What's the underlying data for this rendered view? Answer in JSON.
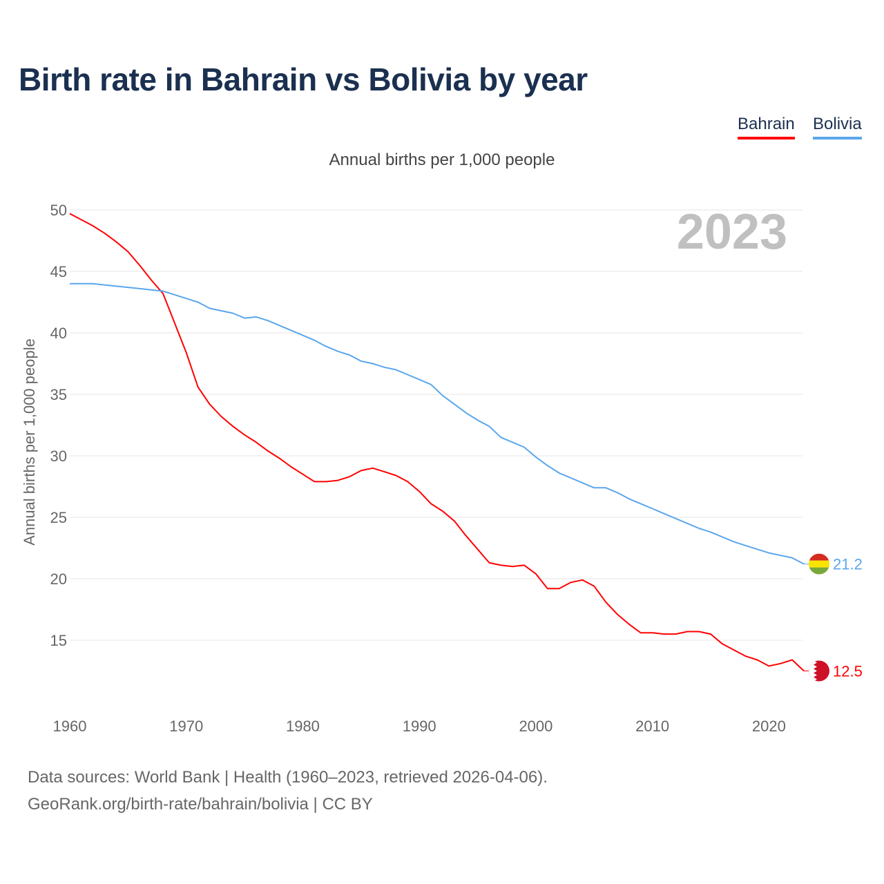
{
  "title": "Birth rate in Bahrain vs Bolivia by year",
  "legend": {
    "bahrain": "Bahrain",
    "bolivia": "Bolivia"
  },
  "subtitle": "Annual births per 1,000 people",
  "footer": {
    "line1": "Data sources: World Bank | Health (1960–2023, retrieved 2026-04-06).",
    "line2": "GeoRank.org/birth-rate/bahrain/bolivia | CC BY"
  },
  "chart_data": {
    "type": "line",
    "title": "Birth rate in Bahrain vs Bolivia by year",
    "ylabel": "Annual births per 1,000 people",
    "xlabel": "",
    "year_label": "2023",
    "xlim": [
      1960,
      2023
    ],
    "ylim": [
      10,
      50
    ],
    "yticks": [
      15,
      20,
      25,
      30,
      35,
      40,
      45,
      50
    ],
    "xticks": [
      1960,
      1970,
      1980,
      1990,
      2000,
      2010,
      2020
    ],
    "grid": true,
    "legend_position": "top-right",
    "x_start": 1960,
    "series": [
      {
        "name": "Bahrain",
        "color": "#ff0000",
        "end_label": "12.5",
        "values": [
          49.7,
          49.2,
          48.7,
          48.1,
          47.4,
          46.6,
          45.5,
          44.3,
          43.2,
          40.8,
          38.4,
          35.6,
          34.2,
          33.2,
          32.4,
          31.7,
          31.1,
          30.4,
          29.8,
          29.1,
          28.5,
          27.9,
          27.9,
          28.0,
          28.3,
          28.8,
          29.0,
          28.7,
          28.4,
          27.9,
          27.1,
          26.1,
          25.5,
          24.7,
          23.5,
          22.4,
          21.3,
          21.1,
          21.0,
          21.1,
          20.4,
          19.2,
          19.2,
          19.7,
          19.9,
          19.4,
          18.1,
          17.1,
          16.3,
          15.6,
          15.6,
          15.5,
          15.5,
          15.7,
          15.7,
          15.5,
          14.7,
          14.2,
          13.7,
          13.4,
          12.9,
          13.1,
          13.4,
          12.5
        ]
      },
      {
        "name": "Bolivia",
        "color": "#5aa6ec",
        "end_label": "21.2",
        "values": [
          44.0,
          44.0,
          44.0,
          43.9,
          43.8,
          43.7,
          43.6,
          43.5,
          43.4,
          43.1,
          42.8,
          42.5,
          42.0,
          41.8,
          41.6,
          41.2,
          41.3,
          41.0,
          40.6,
          40.2,
          39.8,
          39.4,
          38.9,
          38.5,
          38.2,
          37.7,
          37.5,
          37.2,
          37.0,
          36.6,
          36.2,
          35.8,
          34.9,
          34.2,
          33.5,
          32.9,
          32.4,
          31.5,
          31.1,
          30.7,
          29.9,
          29.2,
          28.6,
          28.2,
          27.8,
          27.4,
          27.4,
          27.0,
          26.5,
          26.1,
          25.7,
          25.3,
          24.9,
          24.5,
          24.1,
          23.8,
          23.4,
          23.0,
          22.7,
          22.4,
          22.1,
          21.9,
          21.7,
          21.2
        ]
      }
    ]
  }
}
